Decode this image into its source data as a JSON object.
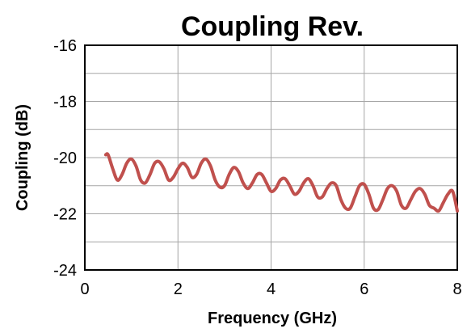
{
  "chart_data": {
    "type": "line",
    "title": "Coupling Rev.",
    "xlabel": "Frequency (GHz)",
    "ylabel": "Coupling (dB)",
    "xlim": [
      0,
      8
    ],
    "ylim": [
      -24,
      -16
    ],
    "xticks": [
      "0",
      "2",
      "4",
      "6",
      "8"
    ],
    "yticks": [
      "-16",
      "-18",
      "-20",
      "-22",
      "-24"
    ],
    "grid": true,
    "legend": "none",
    "series": [
      {
        "color": "#c0504d",
        "x": [
          0.45,
          0.5,
          0.6,
          0.7,
          0.8,
          0.9,
          1.0,
          1.1,
          1.2,
          1.3,
          1.4,
          1.5,
          1.6,
          1.7,
          1.8,
          1.9,
          2.0,
          2.1,
          2.2,
          2.3,
          2.4,
          2.5,
          2.6,
          2.7,
          2.8,
          2.9,
          3.0,
          3.1,
          3.2,
          3.3,
          3.4,
          3.5,
          3.6,
          3.7,
          3.8,
          3.9,
          4.0,
          4.1,
          4.2,
          4.3,
          4.4,
          4.5,
          4.6,
          4.7,
          4.8,
          4.9,
          5.0,
          5.1,
          5.2,
          5.3,
          5.4,
          5.5,
          5.6,
          5.7,
          5.8,
          5.9,
          6.0,
          6.1,
          6.2,
          6.3,
          6.4,
          6.5,
          6.6,
          6.7,
          6.8,
          6.9,
          7.0,
          7.1,
          7.2,
          7.3,
          7.4,
          7.5,
          7.6,
          7.7,
          7.8,
          7.9,
          8.0
        ],
        "y": [
          -19.9,
          -19.9,
          -20.4,
          -20.8,
          -20.6,
          -20.2,
          -20.05,
          -20.3,
          -20.8,
          -20.9,
          -20.6,
          -20.2,
          -20.15,
          -20.4,
          -20.8,
          -20.7,
          -20.4,
          -20.2,
          -20.35,
          -20.7,
          -20.6,
          -20.2,
          -20.05,
          -20.3,
          -20.8,
          -21.05,
          -21.0,
          -20.6,
          -20.35,
          -20.5,
          -20.9,
          -21.1,
          -20.9,
          -20.6,
          -20.6,
          -20.9,
          -21.2,
          -21.1,
          -20.8,
          -20.75,
          -21.0,
          -21.3,
          -21.2,
          -20.9,
          -20.75,
          -21.0,
          -21.4,
          -21.4,
          -21.1,
          -20.9,
          -21.0,
          -21.5,
          -21.8,
          -21.8,
          -21.4,
          -21.0,
          -20.95,
          -21.3,
          -21.8,
          -21.85,
          -21.5,
          -21.1,
          -21.0,
          -21.2,
          -21.7,
          -21.8,
          -21.5,
          -21.2,
          -21.1,
          -21.3,
          -21.7,
          -21.8,
          -21.9,
          -21.6,
          -21.3,
          -21.2,
          -21.9
        ]
      }
    ]
  }
}
